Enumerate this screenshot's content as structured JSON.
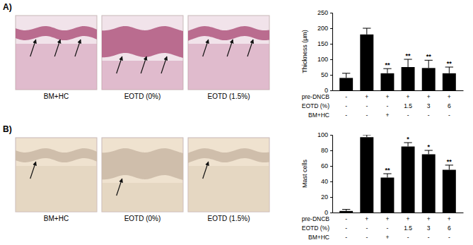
{
  "chart_data": [
    {
      "type": "bar",
      "panel_label": "A)",
      "ylabel": "Thickness (μm)",
      "image_captions": [
        "BM+HC",
        "EOTD (0%)",
        "EOTD (1.5%)"
      ],
      "categories": [
        null,
        null,
        null,
        null,
        null,
        null
      ],
      "values": [
        40,
        180,
        55,
        75,
        72,
        55
      ],
      "errors": [
        15,
        20,
        15,
        25,
        25,
        20
      ],
      "significance": [
        null,
        null,
        "**",
        "**",
        "**",
        "**"
      ],
      "conditions": [
        {
          "name": "pre-DNCB",
          "values": [
            "-",
            "+",
            "+",
            "+",
            "+",
            "+"
          ]
        },
        {
          "name": "EOTD (%)",
          "values": [
            "-",
            "-",
            "-",
            "1.5",
            "3",
            "6"
          ]
        },
        {
          "name": "BM+HC",
          "values": [
            "-",
            "-",
            "+",
            "-",
            "-",
            "-"
          ]
        }
      ],
      "color": "#000000",
      "ylim": [
        0,
        250
      ],
      "yticks": [
        0,
        50,
        100,
        150,
        200,
        250
      ]
    },
    {
      "type": "bar",
      "panel_label": "B)",
      "ylabel": "Mast cells",
      "image_captions": [
        "BM+HC",
        "EOTD (0%)",
        "EOTD (1.5%)"
      ],
      "categories": [
        null,
        null,
        null,
        null,
        null,
        null
      ],
      "values": [
        2,
        97,
        45,
        85,
        75,
        55
      ],
      "errors": [
        2,
        3,
        5,
        5,
        5,
        6
      ],
      "significance": [
        null,
        null,
        "**",
        "*",
        "*",
        "**"
      ],
      "conditions": [
        {
          "name": "pre-DNCB",
          "values": [
            "-",
            "+",
            "+",
            "+",
            "+",
            "+"
          ]
        },
        {
          "name": "EOTD (%)",
          "values": [
            "-",
            "-",
            "-",
            "1.5",
            "3",
            "6"
          ]
        },
        {
          "name": "BM+HC",
          "values": [
            "-",
            "-",
            "+",
            "-",
            "-",
            "-"
          ]
        }
      ],
      "color": "#000000",
      "ylim": [
        0,
        100
      ],
      "yticks": [
        0,
        20,
        40,
        60,
        80,
        100
      ]
    }
  ]
}
